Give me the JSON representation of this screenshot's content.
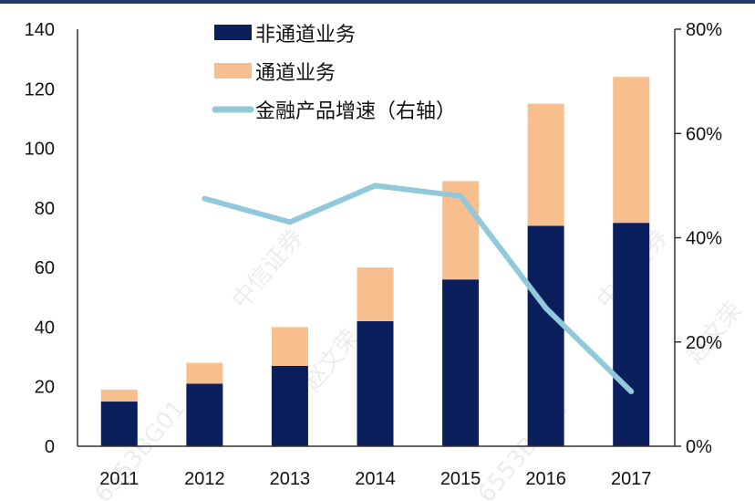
{
  "chart_data": {
    "type": "bar",
    "stacked": true,
    "categories": [
      "2011",
      "2012",
      "2013",
      "2014",
      "2015",
      "2016",
      "2017"
    ],
    "series": [
      {
        "name": "非通道业务",
        "type": "bar",
        "axis": "left",
        "color": "#0a1f5c",
        "values": [
          15,
          21,
          27,
          42,
          56,
          74,
          75
        ]
      },
      {
        "name": "通道业务",
        "type": "bar",
        "axis": "left",
        "color": "#f8bf8e",
        "values": [
          4,
          7,
          13,
          18,
          33,
          41,
          49
        ]
      },
      {
        "name": "金融产品增速（右轴）",
        "type": "line",
        "axis": "right",
        "color": "#92c9da",
        "values": [
          null,
          47.5,
          43,
          50,
          48,
          26.5,
          10.5
        ]
      }
    ],
    "left_axis": {
      "ylim": [
        0,
        140
      ],
      "ticks": [
        "0",
        "20",
        "40",
        "60",
        "80",
        "100",
        "120",
        "140"
      ]
    },
    "right_axis": {
      "ylim": [
        0,
        80
      ],
      "ticks": [
        "0%",
        "20%",
        "40%",
        "60%",
        "80%"
      ],
      "unit": "%"
    },
    "legend_position": "top-left",
    "grid": false
  },
  "watermarks": [
    "中信证券",
    "赵文荣",
    "6553BG01"
  ]
}
